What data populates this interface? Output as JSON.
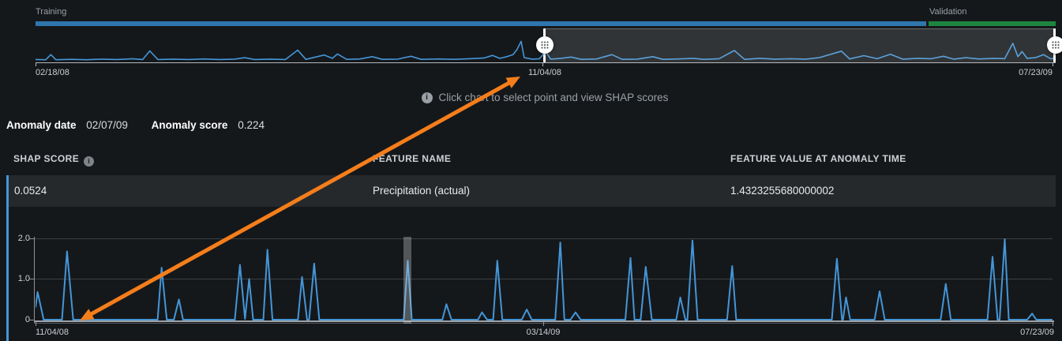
{
  "colors": {
    "background": "#15181b",
    "row_background": "#26292c",
    "line_blue": "#4496d8",
    "training_bar_blue": "#2f76ad",
    "validation_bar_green": "#1e8540",
    "annotation_orange": "#f57e1b",
    "muted_text": "#9aa0a6"
  },
  "overview": {
    "training_label": "Training",
    "validation_label": "Validation",
    "hint_text": "Click chart to select point and view SHAP scores",
    "hint_icon": "info-icon",
    "brush_handle_icon": "drag-grip-icon"
  },
  "anomaly": {
    "date_label": "Anomaly date",
    "date_value": "02/07/09",
    "score_label": "Anomaly score",
    "score_value": "0.224"
  },
  "table": {
    "headers": [
      "SHAP SCORE",
      "FEATURE NAME",
      "FEATURE VALUE AT ANOMALY TIME"
    ],
    "header_info_icon": "info-icon",
    "rows": [
      {
        "shap_score": "0.0524",
        "feature_name": "Precipitation (actual)",
        "feature_value": "1.4323255680000002"
      }
    ]
  },
  "chart_data": [
    {
      "type": "line",
      "name": "overview-timeline",
      "x_ticks": [
        "02/18/08",
        "11/04/08",
        "07/23/09"
      ],
      "segments": [
        {
          "label": "Training",
          "from": "02/18/08",
          "to": "11/04/08"
        },
        {
          "label": "Validation",
          "from": "11/04/08",
          "to": "07/23/09"
        }
      ],
      "brush_selection": {
        "start": "11/04/08",
        "end": "07/23/09"
      },
      "grid": false,
      "series": [
        {
          "name": "metric",
          "points": [
            [
              0,
              0.06
            ],
            [
              0.01,
              0.05
            ],
            [
              0.015,
              0.3
            ],
            [
              0.02,
              0.05
            ],
            [
              0.035,
              0.07
            ],
            [
              0.05,
              0.05
            ],
            [
              0.065,
              0.08
            ],
            [
              0.08,
              0.06
            ],
            [
              0.095,
              0.1
            ],
            [
              0.105,
              0.06
            ],
            [
              0.112,
              0.48
            ],
            [
              0.12,
              0.06
            ],
            [
              0.135,
              0.08
            ],
            [
              0.15,
              0.06
            ],
            [
              0.165,
              0.09
            ],
            [
              0.18,
              0.06
            ],
            [
              0.195,
              0.08
            ],
            [
              0.205,
              0.15
            ],
            [
              0.215,
              0.06
            ],
            [
              0.23,
              0.08
            ],
            [
              0.245,
              0.06
            ],
            [
              0.257,
              0.52
            ],
            [
              0.265,
              0.07
            ],
            [
              0.283,
              0.28
            ],
            [
              0.291,
              0.12
            ],
            [
              0.296,
              0.33
            ],
            [
              0.305,
              0.07
            ],
            [
              0.318,
              0.09
            ],
            [
              0.33,
              0.2
            ],
            [
              0.34,
              0.07
            ],
            [
              0.355,
              0.08
            ],
            [
              0.368,
              0.22
            ],
            [
              0.378,
              0.07
            ],
            [
              0.395,
              0.09
            ],
            [
              0.41,
              0.07
            ],
            [
              0.425,
              0.1
            ],
            [
              0.44,
              0.14
            ],
            [
              0.448,
              0.26
            ],
            [
              0.455,
              0.12
            ],
            [
              0.462,
              0.2
            ],
            [
              0.468,
              0.3
            ],
            [
              0.472,
              0.55
            ],
            [
              0.476,
              0.95
            ],
            [
              0.479,
              0.15
            ],
            [
              0.487,
              0.08
            ],
            [
              0.494,
              0.1
            ],
            [
              0.5,
              0.45
            ],
            [
              0.505,
              0.08
            ],
            [
              0.515,
              0.12
            ],
            [
              0.525,
              0.18
            ],
            [
              0.535,
              0.07
            ],
            [
              0.55,
              0.09
            ],
            [
              0.565,
              0.3
            ],
            [
              0.575,
              0.07
            ],
            [
              0.59,
              0.08
            ],
            [
              0.605,
              0.2
            ],
            [
              0.615,
              0.07
            ],
            [
              0.63,
              0.09
            ],
            [
              0.645,
              0.12
            ],
            [
              0.655,
              0.07
            ],
            [
              0.67,
              0.1
            ],
            [
              0.685,
              0.5
            ],
            [
              0.695,
              0.07
            ],
            [
              0.71,
              0.12
            ],
            [
              0.725,
              0.08
            ],
            [
              0.74,
              0.1
            ],
            [
              0.755,
              0.08
            ],
            [
              0.768,
              0.15
            ],
            [
              0.79,
              0.47
            ],
            [
              0.798,
              0.09
            ],
            [
              0.812,
              0.25
            ],
            [
              0.825,
              0.1
            ],
            [
              0.838,
              0.32
            ],
            [
              0.85,
              0.08
            ],
            [
              0.865,
              0.12
            ],
            [
              0.878,
              0.1
            ],
            [
              0.89,
              0.22
            ],
            [
              0.9,
              0.08
            ],
            [
              0.912,
              0.15
            ],
            [
              0.925,
              0.09
            ],
            [
              0.94,
              0.12
            ],
            [
              0.95,
              0.1
            ],
            [
              0.958,
              0.85
            ],
            [
              0.963,
              0.2
            ],
            [
              0.967,
              0.45
            ],
            [
              0.972,
              0.12
            ],
            [
              0.98,
              0.15
            ],
            [
              0.988,
              0.3
            ],
            [
              0.995,
              0.1
            ],
            [
              1,
              0.12
            ]
          ]
        }
      ]
    },
    {
      "type": "line",
      "name": "feature-detail",
      "title": "",
      "xlabel": "",
      "ylabel": "",
      "ylim": [
        0,
        2
      ],
      "y_ticks": [
        "2.0",
        "1.0",
        "0"
      ],
      "x_ticks": [
        "11/04/08",
        "03/14/09",
        "07/23/09"
      ],
      "grid": true,
      "selected_point": {
        "date": "02/07/09",
        "x_fraction": 0.366
      },
      "series": [
        {
          "name": "Precipitation (actual)",
          "points": [
            [
              0,
              0.3
            ],
            [
              0.002,
              0.68
            ],
            [
              0.008,
              0
            ],
            [
              0.026,
              0
            ],
            [
              0.031,
              1.68
            ],
            [
              0.037,
              0
            ],
            [
              0.12,
              0
            ],
            [
              0.124,
              1.28
            ],
            [
              0.129,
              0
            ],
            [
              0.136,
              0
            ],
            [
              0.141,
              0.5
            ],
            [
              0.145,
              0
            ],
            [
              0.196,
              0
            ],
            [
              0.201,
              1.35
            ],
            [
              0.206,
              0.02
            ],
            [
              0.21,
              1.0
            ],
            [
              0.214,
              0
            ],
            [
              0.224,
              0
            ],
            [
              0.228,
              1.72
            ],
            [
              0.233,
              0
            ],
            [
              0.258,
              0
            ],
            [
              0.262,
              1.05
            ],
            [
              0.267,
              0
            ],
            [
              0.269,
              0
            ],
            [
              0.274,
              1.38
            ],
            [
              0.279,
              0
            ],
            [
              0.362,
              0
            ],
            [
              0.366,
              1.45
            ],
            [
              0.37,
              0
            ],
            [
              0.4,
              0
            ],
            [
              0.404,
              0.38
            ],
            [
              0.409,
              0
            ],
            [
              0.435,
              0
            ],
            [
              0.439,
              0.18
            ],
            [
              0.444,
              0
            ],
            [
              0.45,
              0
            ],
            [
              0.454,
              1.45
            ],
            [
              0.459,
              0
            ],
            [
              0.478,
              0
            ],
            [
              0.483,
              0.25
            ],
            [
              0.488,
              0
            ],
            [
              0.511,
              0
            ],
            [
              0.516,
              1.9
            ],
            [
              0.52,
              0
            ],
            [
              0.526,
              0
            ],
            [
              0.531,
              0.18
            ],
            [
              0.536,
              0
            ],
            [
              0.58,
              0
            ],
            [
              0.585,
              1.52
            ],
            [
              0.589,
              0
            ],
            [
              0.595,
              0
            ],
            [
              0.6,
              1.3
            ],
            [
              0.606,
              0
            ],
            [
              0.63,
              0
            ],
            [
              0.634,
              0.55
            ],
            [
              0.639,
              0
            ],
            [
              0.641,
              0
            ],
            [
              0.646,
              1.95
            ],
            [
              0.651,
              0
            ],
            [
              0.68,
              0
            ],
            [
              0.685,
              1.32
            ],
            [
              0.689,
              0
            ],
            [
              0.783,
              0
            ],
            [
              0.788,
              1.5
            ],
            [
              0.793,
              0
            ],
            [
              0.794,
              0
            ],
            [
              0.797,
              0.55
            ],
            [
              0.801,
              0
            ],
            [
              0.825,
              0
            ],
            [
              0.83,
              0.7
            ],
            [
              0.835,
              0
            ],
            [
              0.89,
              0
            ],
            [
              0.895,
              0.88
            ],
            [
              0.9,
              0
            ],
            [
              0.936,
              0
            ],
            [
              0.941,
              1.55
            ],
            [
              0.946,
              0
            ],
            [
              0.948,
              0
            ],
            [
              0.953,
              1.98
            ],
            [
              0.957,
              0
            ],
            [
              0.975,
              0
            ],
            [
              0.98,
              0.15
            ],
            [
              0.984,
              0
            ],
            [
              1,
              0
            ]
          ]
        }
      ]
    }
  ]
}
